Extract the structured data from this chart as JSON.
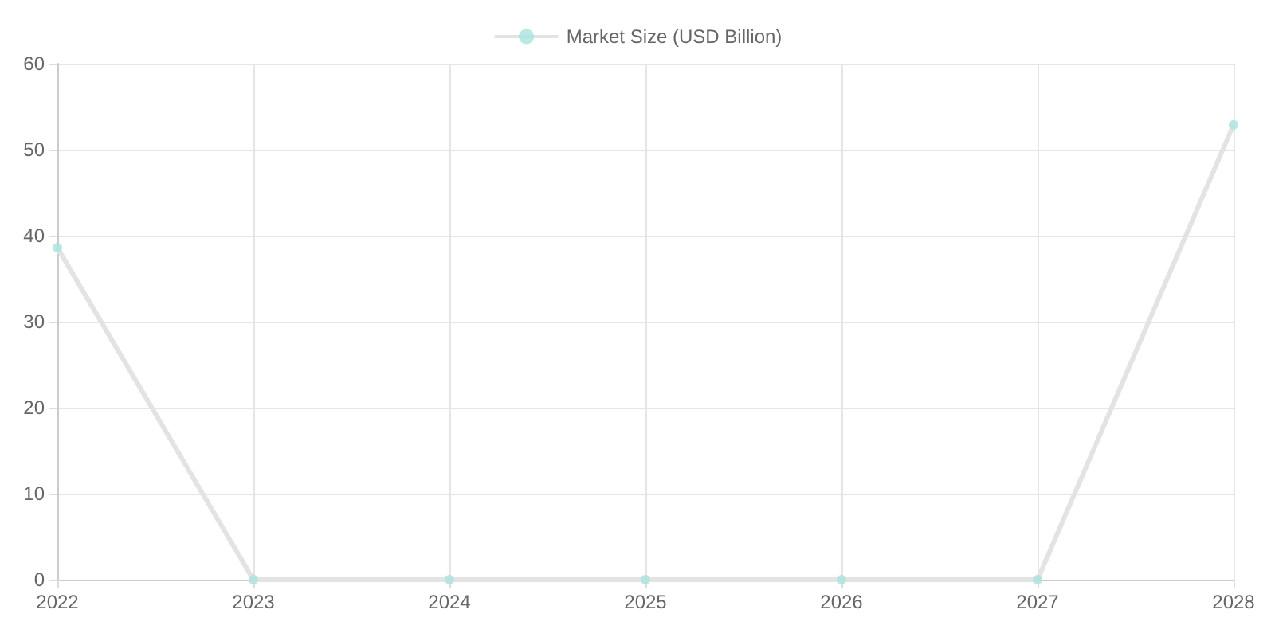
{
  "chart_data": {
    "type": "line",
    "categories": [
      "2022",
      "2023",
      "2024",
      "2025",
      "2026",
      "2027",
      "2028"
    ],
    "series": [
      {
        "name": "Market Size (USD Billion)",
        "color": "#a8e2df",
        "values": [
          38.6,
          0,
          0,
          0,
          0,
          0,
          52.9
        ]
      }
    ],
    "ylim": [
      0,
      60
    ],
    "yticks": [
      0,
      10,
      20,
      30,
      40,
      50,
      60
    ],
    "grid": true,
    "legend": "top",
    "marker": "circle"
  }
}
